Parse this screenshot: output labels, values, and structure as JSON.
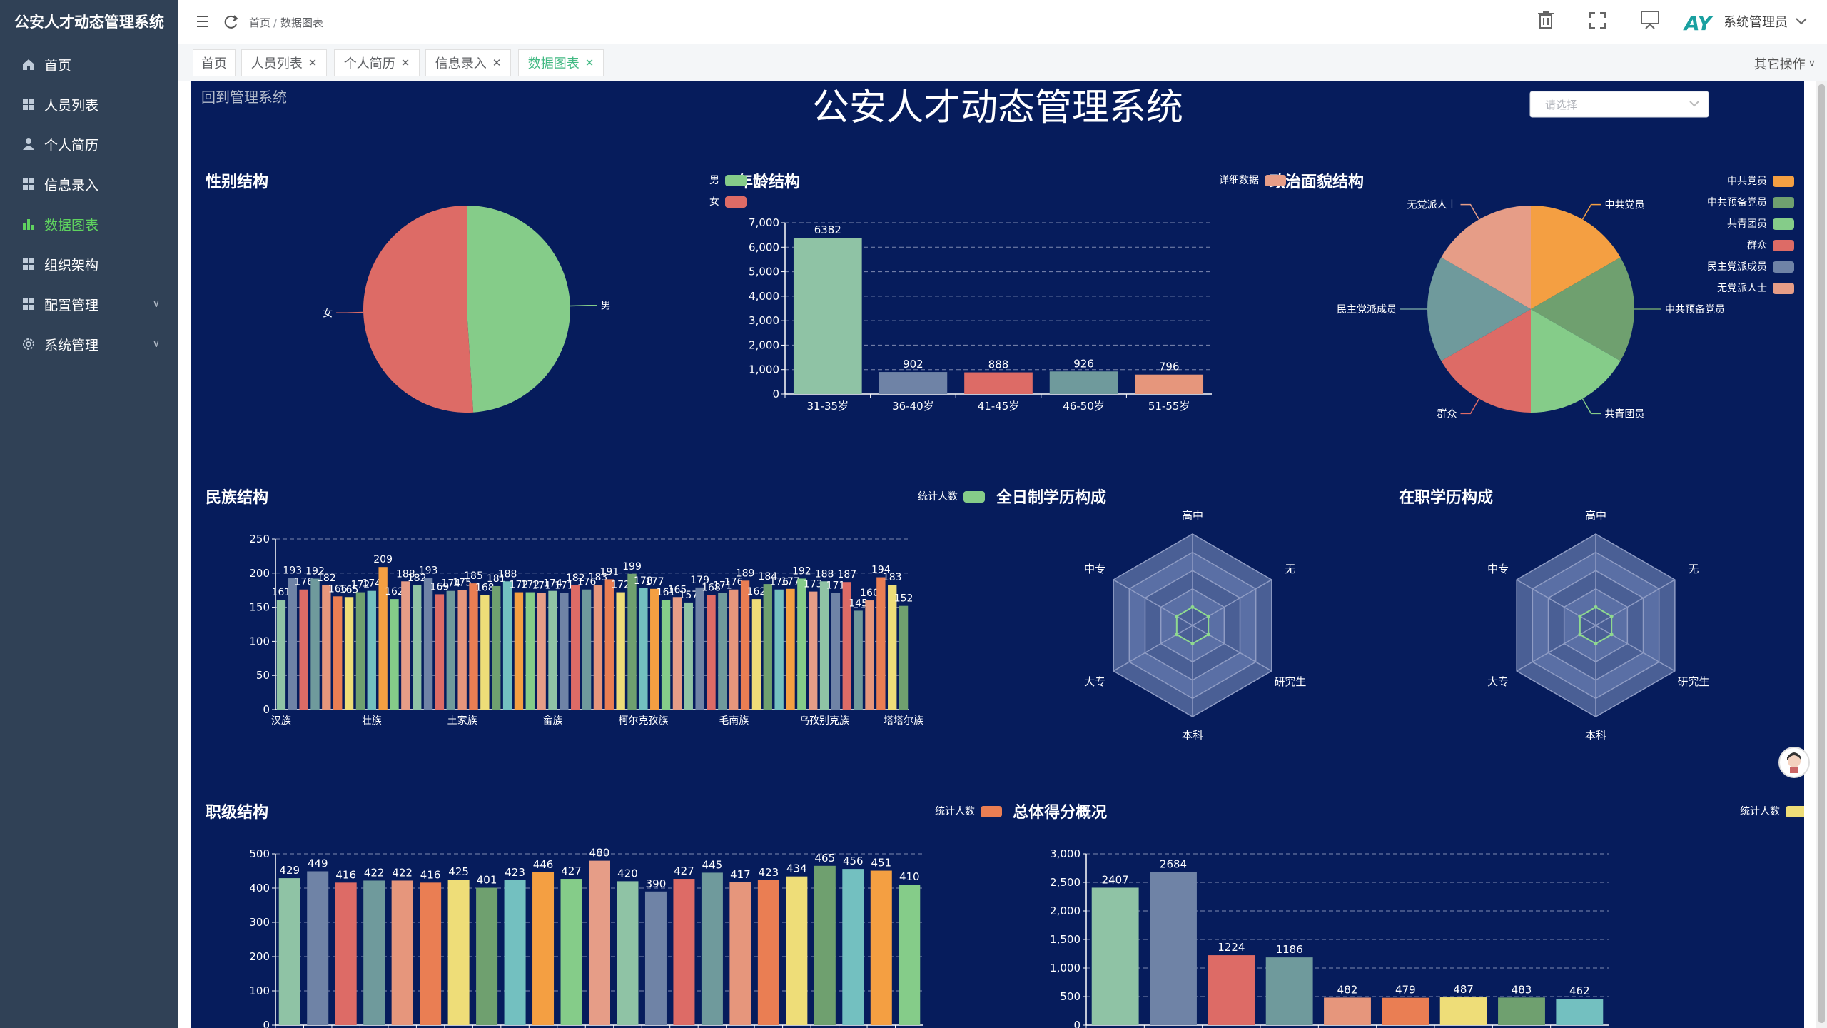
{
  "app": {
    "title": "公安人才动态管理系统",
    "header_title": "公安人才动态管理系统",
    "back_link": "回到管理系统",
    "user": "系统管理员",
    "logo_text": "AY",
    "breadcrumb": [
      "首页",
      "数据图表"
    ],
    "select_placeholder": "请选择",
    "more_actions": "其它操作"
  },
  "sidebar": {
    "items": [
      {
        "label": "首页",
        "icon": "home-icon"
      },
      {
        "label": "人员列表",
        "icon": "grid-icon"
      },
      {
        "label": "个人简历",
        "icon": "user-icon"
      },
      {
        "label": "信息录入",
        "icon": "grid-icon"
      },
      {
        "label": "数据图表",
        "icon": "bar-chart-icon",
        "active": true
      },
      {
        "label": "组织架构",
        "icon": "grid-icon"
      },
      {
        "label": "配置管理",
        "icon": "grid-icon",
        "expandable": true
      },
      {
        "label": "系统管理",
        "icon": "gear-icon",
        "expandable": true
      }
    ]
  },
  "tabs": [
    {
      "label": "首页",
      "closable": false
    },
    {
      "label": "人员列表",
      "closable": true
    },
    {
      "label": "个人简历",
      "closable": true
    },
    {
      "label": "信息录入",
      "closable": true
    },
    {
      "label": "数据图表",
      "closable": true,
      "active": true
    }
  ],
  "colors": {
    "sidebar_bg": "#304156",
    "active": "#5fd35f",
    "dashboard_bg": "#061c5c",
    "palette": [
      "#8fc3a5",
      "#6f83a6",
      "#dd6b66",
      "#6f9a9c",
      "#e6967c",
      "#ea7e53",
      "#eedd78",
      "#6fa06f",
      "#73c0c0",
      "#f49f42",
      "#85cc89",
      "#e69d87"
    ]
  },
  "chart_data": [
    {
      "id": "gender",
      "type": "pie",
      "title": "性别结构",
      "legend": [
        "男",
        "女"
      ],
      "slices": [
        {
          "name": "男",
          "value": 49
        },
        {
          "name": "女",
          "value": 51
        }
      ]
    },
    {
      "id": "age",
      "type": "bar",
      "title": "年龄结构",
      "legend": [
        "详细数据"
      ],
      "categories": [
        "31-35岁",
        "36-40岁",
        "41-45岁",
        "46-50岁",
        "51-55岁"
      ],
      "values": [
        6382,
        902,
        888,
        926,
        796
      ],
      "ylim": [
        0,
        7000
      ],
      "yticks": [
        0,
        1000,
        2000,
        3000,
        4000,
        5000,
        6000,
        7000
      ]
    },
    {
      "id": "political",
      "type": "pie",
      "title": "政治面貌结构",
      "legend": [
        "中共党员",
        "中共预备党员",
        "共青团员",
        "群众",
        "民主党派成员",
        "无党派人士"
      ],
      "slices": [
        {
          "name": "中共党员",
          "value": 1
        },
        {
          "name": "中共预备党员",
          "value": 1
        },
        {
          "name": "共青团员",
          "value": 1
        },
        {
          "name": "群众",
          "value": 1
        },
        {
          "name": "民主党派成员",
          "value": 1
        },
        {
          "name": "无党派人士",
          "value": 1
        }
      ]
    },
    {
      "id": "ethnic",
      "type": "bar",
      "title": "民族结构",
      "legend": [
        "统计人数"
      ],
      "xlabels": [
        "汉族",
        "壮族",
        "土家族",
        "畲族",
        "柯尔克孜族",
        "毛南族",
        "乌孜别克族",
        "塔塔尔族"
      ],
      "values": [
        161,
        193,
        176,
        192,
        182,
        166,
        165,
        172,
        174,
        209,
        162,
        188,
        182,
        193,
        169,
        174,
        175,
        185,
        168,
        181,
        188,
        172,
        172,
        171,
        174,
        171,
        182,
        176,
        183,
        191,
        172,
        199,
        178,
        177,
        161,
        165,
        157,
        179,
        168,
        171,
        176,
        189,
        162,
        184,
        176,
        177,
        192,
        173,
        188,
        171,
        187,
        145,
        160,
        194,
        183,
        152
      ],
      "ylim": [
        0,
        250
      ],
      "yticks": [
        0,
        50,
        100,
        150,
        200,
        250
      ]
    },
    {
      "id": "edu_full",
      "type": "radar",
      "title": "全日制学历构成",
      "indicators": [
        "高中",
        "无",
        "研究生",
        "本科",
        "大专",
        "中专"
      ]
    },
    {
      "id": "edu_job",
      "type": "radar",
      "title": "在职学历构成",
      "indicators": [
        "高中",
        "无",
        "研究生",
        "本科",
        "大专",
        "中专"
      ]
    },
    {
      "id": "rank",
      "type": "bar",
      "title": "职级结构",
      "legend": [
        "统计人数"
      ],
      "values": [
        429,
        449,
        416,
        422,
        422,
        416,
        425,
        401,
        423,
        446,
        427,
        480,
        420,
        390,
        427,
        445,
        417,
        423,
        434,
        465,
        456,
        451,
        410
      ],
      "ylim": [
        0,
        500
      ],
      "yticks": [
        0,
        100,
        200,
        300,
        400,
        500
      ]
    },
    {
      "id": "score",
      "type": "bar",
      "title": "总体得分概况",
      "legend": [
        "统计人数"
      ],
      "values": [
        2407,
        2684,
        1224,
        1186,
        482,
        479,
        487,
        483,
        462
      ],
      "ylim": [
        0,
        3000
      ],
      "yticks": [
        0,
        500,
        1000,
        1500,
        2000,
        2500,
        3000
      ]
    }
  ]
}
